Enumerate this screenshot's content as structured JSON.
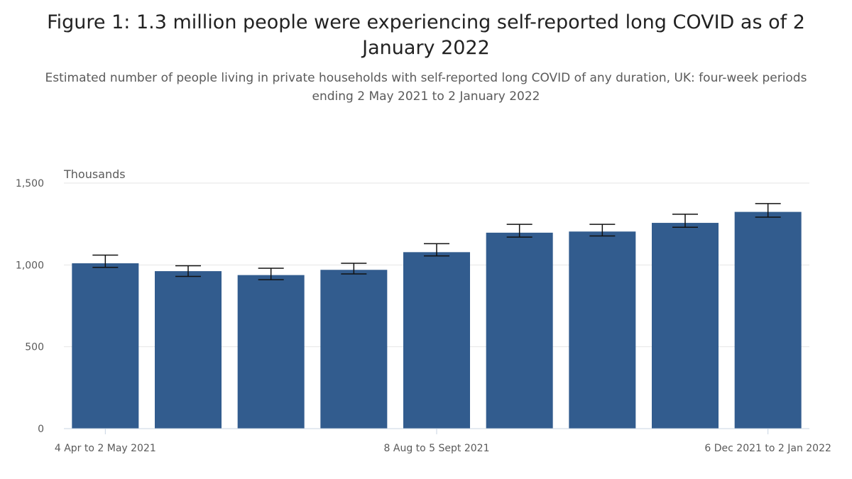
{
  "chart_data": {
    "type": "bar",
    "title": "Figure 1: 1.3 million people were experiencing self-reported long COVID as of 2 January 2022",
    "subtitle": "Estimated number of people living in private households with self-reported long COVID of any duration, UK: four-week periods ending 2 May 2021 to 2 January 2022",
    "ylabel": "Thousands",
    "xlabel": "",
    "ylim": [
      0,
      1500
    ],
    "yticks": [
      0,
      500,
      1000,
      1500
    ],
    "ytick_labels": [
      "0",
      "500",
      "1,000",
      "1,500"
    ],
    "grid": true,
    "categories": [
      "4 Apr to 2 May 2021",
      "",
      "",
      "",
      "8 Aug to 5 Sept 2021",
      "",
      "",
      "",
      "6 Dec 2021 to 2 Jan 2022"
    ],
    "values": [
      1010,
      962,
      938,
      970,
      1078,
      1197,
      1204,
      1257,
      1324
    ],
    "error_lower": [
      985,
      930,
      910,
      945,
      1055,
      1170,
      1177,
      1230,
      1292
    ],
    "error_upper": [
      1060,
      995,
      980,
      1010,
      1130,
      1248,
      1248,
      1310,
      1375
    ],
    "bar_color": "#325c8e"
  }
}
